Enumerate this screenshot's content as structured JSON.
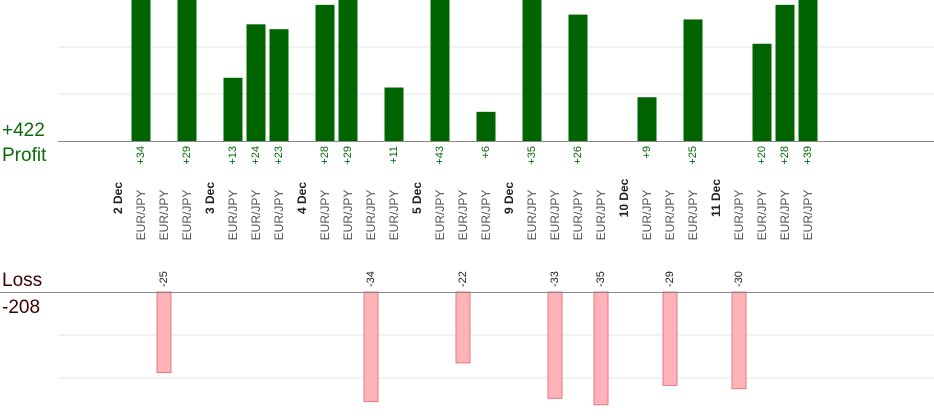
{
  "summary": {
    "profit_total": "+422",
    "profit_label": "Profit",
    "loss_label": "Loss",
    "loss_total": "-208"
  },
  "colors": {
    "profit_fill": "#006400",
    "profit_text": "#0a6a0a",
    "loss_fill": "#ffb3b8",
    "loss_stroke": "#e07a80",
    "date_text": "#222222",
    "pair_text": "#555555",
    "grid": "#e6e6e6",
    "baseline": "#888888"
  },
  "chart_data": {
    "type": "bar",
    "ylim_profit": [
      0,
      29
    ],
    "ylim_loss": [
      -36,
      0
    ],
    "grid": true,
    "columns": [
      {
        "label": "2 Dec",
        "kind": "date"
      },
      {
        "label": "EUR/JPY",
        "kind": "trade",
        "value": 34
      },
      {
        "label": "EUR/JPY",
        "kind": "trade",
        "value": -25
      },
      {
        "label": "EUR/JPY",
        "kind": "trade",
        "value": 29
      },
      {
        "label": "3 Dec",
        "kind": "date"
      },
      {
        "label": "EUR/JPY",
        "kind": "trade",
        "value": 13
      },
      {
        "label": "EUR/JPY",
        "kind": "trade",
        "value": 24
      },
      {
        "label": "EUR/JPY",
        "kind": "trade",
        "value": 23
      },
      {
        "label": "4 Dec",
        "kind": "date"
      },
      {
        "label": "EUR/JPY",
        "kind": "trade",
        "value": 28
      },
      {
        "label": "EUR/JPY",
        "kind": "trade",
        "value": 29
      },
      {
        "label": "EUR/JPY",
        "kind": "trade",
        "value": -34
      },
      {
        "label": "EUR/JPY",
        "kind": "trade",
        "value": 11
      },
      {
        "label": "5 Dec",
        "kind": "date"
      },
      {
        "label": "EUR/JPY",
        "kind": "trade",
        "value": 43
      },
      {
        "label": "EUR/JPY",
        "kind": "trade",
        "value": -22
      },
      {
        "label": "EUR/JPY",
        "kind": "trade",
        "value": 6
      },
      {
        "label": "9 Dec",
        "kind": "date"
      },
      {
        "label": "EUR/JPY",
        "kind": "trade",
        "value": 35
      },
      {
        "label": "EUR/JPY",
        "kind": "trade",
        "value": -33
      },
      {
        "label": "EUR/JPY",
        "kind": "trade",
        "value": 26
      },
      {
        "label": "EUR/JPY",
        "kind": "trade",
        "value": -35
      },
      {
        "label": "10 Dec",
        "kind": "date"
      },
      {
        "label": "EUR/JPY",
        "kind": "trade",
        "value": 9
      },
      {
        "label": "EUR/JPY",
        "kind": "trade",
        "value": -29
      },
      {
        "label": "EUR/JPY",
        "kind": "trade",
        "value": 25
      },
      {
        "label": "11 Dec",
        "kind": "date"
      },
      {
        "label": "EUR/JPY",
        "kind": "trade",
        "value": -30
      },
      {
        "label": "EUR/JPY",
        "kind": "trade",
        "value": 20
      },
      {
        "label": "EUR/JPY",
        "kind": "trade",
        "value": 28
      },
      {
        "label": "EUR/JPY",
        "kind": "trade",
        "value": 39
      }
    ]
  }
}
